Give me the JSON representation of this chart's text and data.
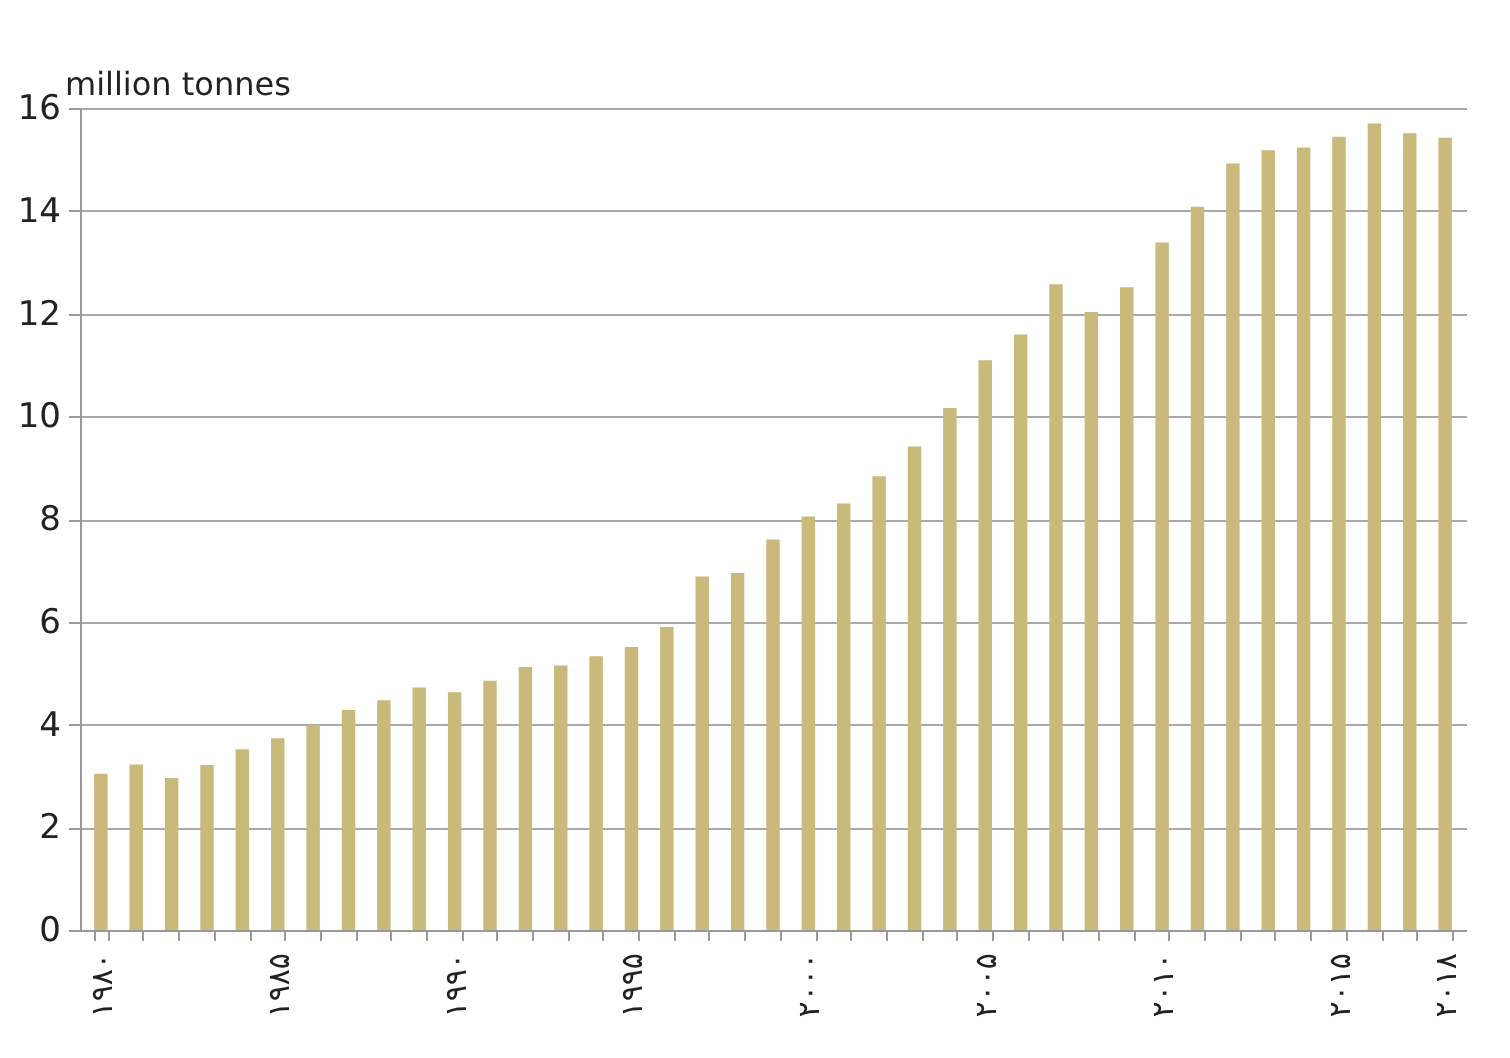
{
  "chart_data": {
    "type": "bar",
    "ylabel": "million tonnes",
    "categories": [
      "۱۹۸۰",
      null,
      null,
      null,
      null,
      "۱۹۸۵",
      null,
      null,
      null,
      null,
      "۱۹۹۰",
      null,
      null,
      null,
      null,
      "۱۹۹۵",
      null,
      null,
      null,
      null,
      "۲۰۰۰",
      null,
      null,
      null,
      null,
      "۲۰۰۵",
      null,
      null,
      null,
      null,
      "۲۰۱۰",
      null,
      null,
      null,
      null,
      "۲۰۱۵",
      null,
      null,
      "۲۰۱۸"
    ],
    "values": [
      3.04,
      3.22,
      2.96,
      3.21,
      3.52,
      3.73,
      3.99,
      4.28,
      4.47,
      4.72,
      4.63,
      4.85,
      5.12,
      5.15,
      5.33,
      5.51,
      5.9,
      6.88,
      6.95,
      7.6,
      8.05,
      8.3,
      8.83,
      9.41,
      10.16,
      11.09,
      11.59,
      12.57,
      12.03,
      12.51,
      13.38,
      14.08,
      14.92,
      15.18,
      15.23,
      15.44,
      15.7,
      15.51,
      15.42
    ],
    "color": "#c9b97a",
    "ylim": [
      0,
      16
    ],
    "yticks": [
      0,
      2,
      4,
      6,
      8,
      10,
      12,
      14,
      16
    ],
    "grid": "y"
  }
}
